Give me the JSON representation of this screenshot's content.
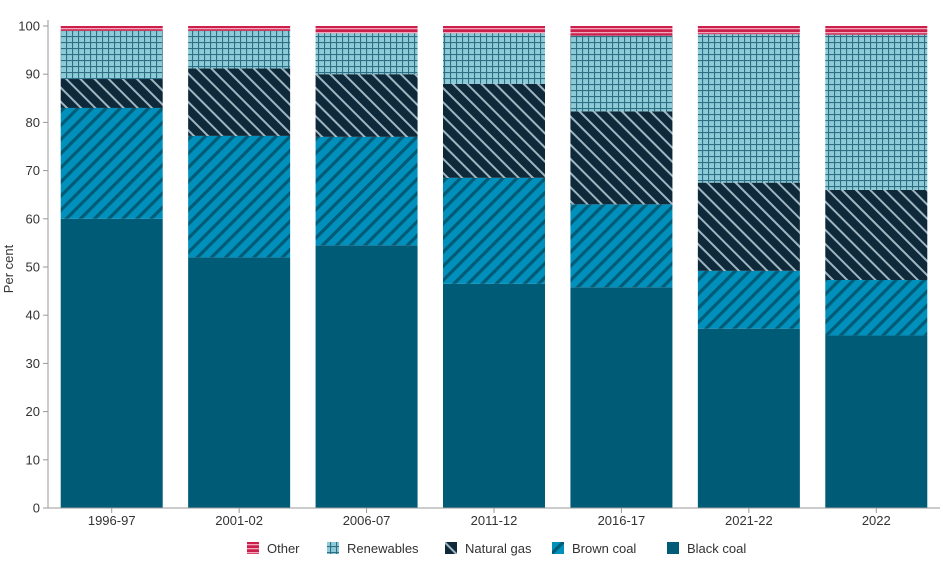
{
  "chart_data": {
    "type": "bar",
    "stacked": true,
    "title": "",
    "xlabel": "",
    "ylabel": "Per cent",
    "ylim": [
      0,
      100
    ],
    "yticks": [
      0,
      10,
      20,
      30,
      40,
      50,
      60,
      70,
      80,
      90,
      100
    ],
    "grid": false,
    "legend_position": "bottom",
    "categories": [
      "1996-97",
      "2001-02",
      "2006-07",
      "2011-12",
      "2016-17",
      "2021-22",
      "2022"
    ],
    "series": [
      {
        "name": "Black coal",
        "color": "#005b77",
        "pattern": "solid",
        "values": [
          60.0,
          52.0,
          54.5,
          46.5,
          45.8,
          37.2,
          35.8
        ]
      },
      {
        "name": "Brown coal",
        "color": "#0090bb",
        "pattern": "hatch",
        "values": [
          23.0,
          25.2,
          22.5,
          22.0,
          17.2,
          12.0,
          11.5
        ]
      },
      {
        "name": "Natural gas",
        "color": "#0e2a3a",
        "pattern": "hatch",
        "values": [
          6.0,
          14.0,
          13.0,
          19.5,
          19.3,
          18.3,
          18.7
        ]
      },
      {
        "name": "Renewables",
        "color": "#8dcbd8",
        "pattern": "grid",
        "values": [
          10.0,
          7.8,
          8.5,
          10.5,
          15.7,
          30.8,
          32.2
        ]
      },
      {
        "name": "Other",
        "color": "#cc1e4a",
        "pattern": "stripe",
        "values": [
          1.0,
          1.0,
          1.5,
          1.5,
          2.0,
          1.7,
          1.8
        ]
      }
    ],
    "legend_order": [
      "Other",
      "Renewables",
      "Natural gas",
      "Brown coal",
      "Black coal"
    ]
  }
}
